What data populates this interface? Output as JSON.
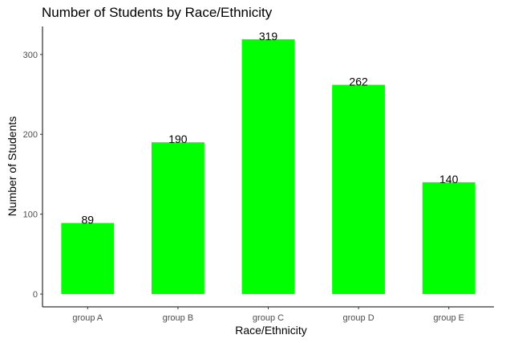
{
  "chart_data": {
    "type": "bar",
    "title": "Number of Students by Race/Ethnicity",
    "xlabel": "Race/Ethnicity",
    "ylabel": "Number of Students",
    "categories": [
      "group A",
      "group B",
      "group C",
      "group D",
      "group E"
    ],
    "values": [
      89,
      190,
      319,
      262,
      140
    ],
    "data_labels": [
      "89",
      "190",
      "319",
      "262",
      "140"
    ],
    "yticks": [
      0,
      100,
      200,
      300
    ],
    "ylim": [
      -16,
      335
    ],
    "bar_color": "#00ff00",
    "grid": false,
    "legend": "none"
  }
}
